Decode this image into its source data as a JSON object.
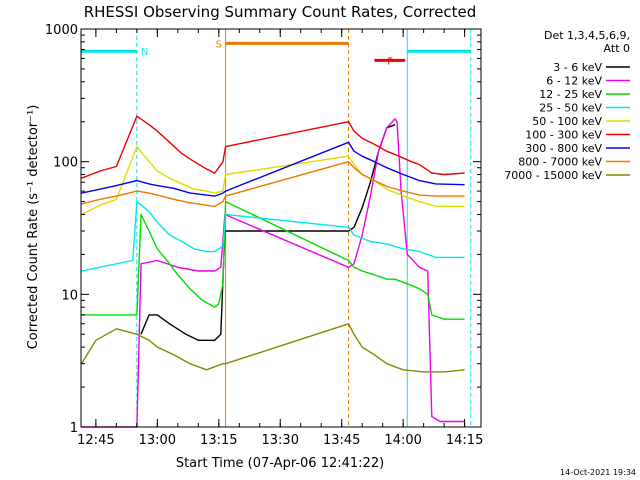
{
  "chart_data": {
    "type": "line",
    "title": "RHESSI Observing Summary Count Rates, Corrected",
    "xlabel": "Start Time (07-Apr-06 12:41:22)",
    "ylabel": "Corrected Count Rate (s⁻¹ detector⁻¹)",
    "ylog": true,
    "ylim": [
      1,
      1000
    ],
    "y_tick_labels": [
      "1",
      "10",
      "100",
      "1000"
    ],
    "xlim": [
      "12:41:22",
      "14:19:00"
    ],
    "x_tick_labels": [
      "12:45",
      "13:00",
      "13:15",
      "13:30",
      "13:45",
      "14:00",
      "14:15"
    ],
    "legend_position": "right",
    "legend_header": [
      "Det 1,3,4,5,6,9,",
      "Att 0"
    ],
    "footer_date": "14-Oct-2021 19:34",
    "markers": {
      "night": {
        "label": "N",
        "color": "#00e5ee",
        "level": 680,
        "segments": [
          [
            "12:41:22",
            "12:55:00"
          ],
          [
            "14:01:00",
            "14:16:30"
          ]
        ]
      },
      "saa": {
        "label": "S",
        "color": "#ee7700",
        "level": 780,
        "segments": [
          [
            "13:16:40",
            "13:46:40"
          ]
        ]
      },
      "flare": {
        "label": "F",
        "color": "#ee0000",
        "level": 580,
        "segments": [
          [
            "13:53:00",
            "14:00:30"
          ]
        ]
      }
    },
    "vlines": [
      {
        "time": "12:41:22",
        "color": "#00e5ee",
        "style": "solid"
      },
      {
        "time": "12:55:00",
        "color": "#00e5ee",
        "style": "dashed"
      },
      {
        "time": "13:16:40",
        "color": "#ee7700",
        "style": "solid"
      },
      {
        "time": "13:46:40",
        "color": "#ee7700",
        "style": "dashed"
      },
      {
        "time": "14:01:00",
        "color": "#00e5ee",
        "style": "solid"
      },
      {
        "time": "14:16:30",
        "color": "#00e5ee",
        "style": "dashed"
      }
    ],
    "series": [
      {
        "name": "3 - 6 keV",
        "color": "#000000",
        "points": [
          [
            "12:56:00",
            5
          ],
          [
            "12:58:00",
            7
          ],
          [
            "13:00:00",
            7
          ],
          [
            "13:03:00",
            6
          ],
          [
            "13:07:00",
            5
          ],
          [
            "13:10:00",
            4.5
          ],
          [
            "13:14:00",
            4.5
          ],
          [
            "13:15:30",
            5
          ],
          [
            "13:16:30",
            30
          ],
          [
            "13:46:40",
            30
          ],
          [
            "13:48:00",
            32
          ],
          [
            "13:50:00",
            45
          ],
          [
            "13:52:00",
            70
          ],
          [
            "13:54:00",
            120
          ],
          [
            "13:56:00",
            180
          ],
          [
            "13:58:00",
            190
          ]
        ]
      },
      {
        "name": "6 - 12 keV",
        "color": "#ee00ee",
        "points": [
          [
            "12:41:30",
            1
          ],
          [
            "12:55:00",
            1
          ],
          [
            "12:56:00",
            17
          ],
          [
            "13:00:00",
            18
          ],
          [
            "13:05:00",
            16
          ],
          [
            "13:10:00",
            15
          ],
          [
            "13:14:00",
            15
          ],
          [
            "13:15:30",
            16
          ],
          [
            "13:16:30",
            40
          ],
          [
            "13:46:40",
            16
          ],
          [
            "13:48:00",
            17
          ],
          [
            "13:50:00",
            28
          ],
          [
            "13:52:00",
            55
          ],
          [
            "13:54:00",
            120
          ],
          [
            "13:56:00",
            180
          ],
          [
            "13:58:00",
            210
          ],
          [
            "13:58:30",
            200
          ],
          [
            "13:59:30",
            60
          ],
          [
            "14:01:00",
            20
          ],
          [
            "14:04:00",
            16
          ],
          [
            "14:06:00",
            15
          ],
          [
            "14:07:00",
            1.2
          ],
          [
            "14:09:00",
            1.1
          ],
          [
            "14:15:00",
            1.1
          ]
        ]
      },
      {
        "name": "12 - 25 keV",
        "color": "#00dd00",
        "points": [
          [
            "12:41:30",
            7
          ],
          [
            "12:55:00",
            7
          ],
          [
            "12:56:00",
            40
          ],
          [
            "12:58:00",
            30
          ],
          [
            "13:00:00",
            22
          ],
          [
            "13:03:00",
            17
          ],
          [
            "13:05:00",
            14
          ],
          [
            "13:08:00",
            11
          ],
          [
            "13:11:00",
            9
          ],
          [
            "13:14:00",
            8
          ],
          [
            "13:15:00",
            8.5
          ],
          [
            "13:16:00",
            12
          ],
          [
            "13:16:40",
            50
          ],
          [
            "13:46:40",
            18
          ],
          [
            "13:48:00",
            16
          ],
          [
            "13:50:00",
            15
          ],
          [
            "13:53:00",
            14
          ],
          [
            "13:56:00",
            13
          ],
          [
            "13:58:00",
            13
          ],
          [
            "14:01:00",
            12
          ],
          [
            "14:04:00",
            11
          ],
          [
            "14:06:00",
            10
          ],
          [
            "14:07:00",
            7
          ],
          [
            "14:10:00",
            6.5
          ],
          [
            "14:15:00",
            6.5
          ]
        ]
      },
      {
        "name": "25 - 50 keV",
        "color": "#00e5ee",
        "points": [
          [
            "12:41:30",
            15
          ],
          [
            "12:50:00",
            17
          ],
          [
            "12:54:00",
            18
          ],
          [
            "12:55:00",
            50
          ],
          [
            "12:58:00",
            42
          ],
          [
            "13:00:00",
            35
          ],
          [
            "13:03:00",
            28
          ],
          [
            "13:06:00",
            25
          ],
          [
            "13:09:00",
            22
          ],
          [
            "13:12:00",
            21
          ],
          [
            "13:14:00",
            21
          ],
          [
            "13:16:00",
            23
          ],
          [
            "13:16:40",
            40
          ],
          [
            "13:46:40",
            32
          ],
          [
            "13:48:00",
            28
          ],
          [
            "13:52:00",
            25
          ],
          [
            "13:56:00",
            24
          ],
          [
            "14:00:00",
            22
          ],
          [
            "14:04:00",
            21
          ],
          [
            "14:08:00",
            19
          ],
          [
            "14:15:00",
            19
          ]
        ]
      },
      {
        "name": "50 - 100 keV",
        "color": "#dddd00",
        "points": [
          [
            "12:41:30",
            40
          ],
          [
            "12:46:00",
            47
          ],
          [
            "12:50:00",
            52
          ],
          [
            "12:55:00",
            130
          ],
          [
            "12:58:00",
            100
          ],
          [
            "13:00:00",
            85
          ],
          [
            "13:03:00",
            75
          ],
          [
            "13:06:00",
            68
          ],
          [
            "13:09:00",
            62
          ],
          [
            "13:12:00",
            60
          ],
          [
            "13:14:00",
            58
          ],
          [
            "13:16:00",
            60
          ],
          [
            "13:16:40",
            80
          ],
          [
            "13:46:40",
            110
          ],
          [
            "13:48:00",
            95
          ],
          [
            "13:50:00",
            80
          ],
          [
            "13:53:00",
            72
          ],
          [
            "13:56:00",
            62
          ],
          [
            "14:00:00",
            55
          ],
          [
            "14:04:00",
            50
          ],
          [
            "14:08:00",
            46
          ],
          [
            "14:15:00",
            46
          ]
        ]
      },
      {
        "name": "100 - 300 keV",
        "color": "#ee0000",
        "points": [
          [
            "12:41:30",
            75
          ],
          [
            "12:46:00",
            85
          ],
          [
            "12:50:00",
            92
          ],
          [
            "12:55:00",
            220
          ],
          [
            "12:58:00",
            190
          ],
          [
            "13:00:00",
            170
          ],
          [
            "13:03:00",
            140
          ],
          [
            "13:06:00",
            115
          ],
          [
            "13:09:00",
            100
          ],
          [
            "13:12:00",
            88
          ],
          [
            "13:14:00",
            82
          ],
          [
            "13:16:00",
            100
          ],
          [
            "13:16:40",
            130
          ],
          [
            "13:46:40",
            200
          ],
          [
            "13:48:00",
            170
          ],
          [
            "13:50:00",
            150
          ],
          [
            "13:53:00",
            135
          ],
          [
            "13:56:00",
            120
          ],
          [
            "13:59:00",
            110
          ],
          [
            "14:02:00",
            100
          ],
          [
            "14:04:00",
            95
          ],
          [
            "14:07:00",
            82
          ],
          [
            "14:10:00",
            80
          ],
          [
            "14:15:00",
            82
          ]
        ]
      },
      {
        "name": "300 - 800 keV",
        "color": "#0000ee",
        "points": [
          [
            "12:41:30",
            58
          ],
          [
            "12:46:00",
            62
          ],
          [
            "12:50:00",
            66
          ],
          [
            "12:55:00",
            72
          ],
          [
            "12:58:00",
            68
          ],
          [
            "13:00:00",
            66
          ],
          [
            "13:04:00",
            63
          ],
          [
            "13:08:00",
            58
          ],
          [
            "13:12:00",
            56
          ],
          [
            "13:14:00",
            55
          ],
          [
            "13:16:00",
            58
          ],
          [
            "13:16:40",
            60
          ],
          [
            "13:46:40",
            140
          ],
          [
            "13:48:00",
            120
          ],
          [
            "13:50:00",
            110
          ],
          [
            "13:53:00",
            100
          ],
          [
            "13:56:00",
            90
          ],
          [
            "14:00:00",
            80
          ],
          [
            "14:04:00",
            72
          ],
          [
            "14:08:00",
            68
          ],
          [
            "14:15:00",
            67
          ]
        ]
      },
      {
        "name": "800 - 7000 keV",
        "color": "#ee7700",
        "points": [
          [
            "12:41:30",
            48
          ],
          [
            "12:46:00",
            52
          ],
          [
            "12:50:00",
            55
          ],
          [
            "12:55:00",
            60
          ],
          [
            "12:58:00",
            58
          ],
          [
            "13:00:00",
            56
          ],
          [
            "13:04:00",
            52
          ],
          [
            "13:08:00",
            49
          ],
          [
            "13:12:00",
            47
          ],
          [
            "13:14:00",
            46
          ],
          [
            "13:16:00",
            50
          ],
          [
            "13:16:40",
            55
          ],
          [
            "13:46:40",
            100
          ],
          [
            "13:48:00",
            90
          ],
          [
            "13:50:00",
            80
          ],
          [
            "13:53:00",
            72
          ],
          [
            "13:56:00",
            65
          ],
          [
            "14:00:00",
            60
          ],
          [
            "14:04:00",
            56
          ],
          [
            "14:08:00",
            55
          ],
          [
            "14:15:00",
            55
          ]
        ]
      },
      {
        "name": "7000 - 15000 keV",
        "color": "#888800",
        "points": [
          [
            "12:41:30",
            3
          ],
          [
            "12:45:00",
            4.5
          ],
          [
            "12:50:00",
            5.5
          ],
          [
            "12:55:00",
            5
          ],
          [
            "12:58:00",
            4.5
          ],
          [
            "13:00:00",
            4
          ],
          [
            "13:04:00",
            3.5
          ],
          [
            "13:08:00",
            3
          ],
          [
            "13:12:00",
            2.7
          ],
          [
            "13:16:00",
            3
          ],
          [
            "13:16:40",
            3
          ],
          [
            "13:46:40",
            6
          ],
          [
            "13:48:00",
            5
          ],
          [
            "13:50:00",
            4
          ],
          [
            "13:53:00",
            3.5
          ],
          [
            "13:56:00",
            3
          ],
          [
            "14:00:00",
            2.7
          ],
          [
            "14:05:00",
            2.6
          ],
          [
            "14:10:00",
            2.6
          ],
          [
            "14:15:00",
            2.7
          ]
        ]
      }
    ]
  }
}
